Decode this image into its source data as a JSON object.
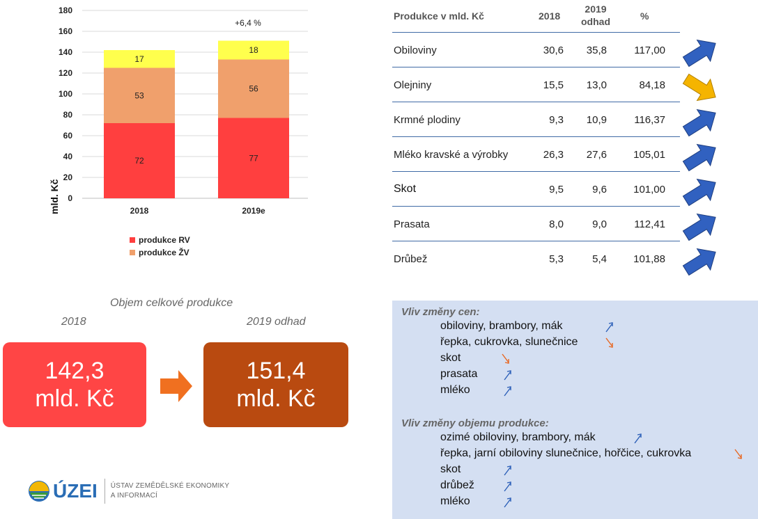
{
  "chart_data": {
    "type": "bar",
    "stacked": true,
    "categories": [
      "2018",
      "2019e"
    ],
    "series": [
      {
        "name": "produkce RV",
        "values": [
          72,
          77
        ],
        "color": "#ff3f3f"
      },
      {
        "name": "produkce ŽV",
        "values": [
          53,
          56
        ],
        "color": "#f0a06c"
      },
      {
        "name": "",
        "values": [
          17,
          18
        ],
        "color": "#ffff4d"
      }
    ],
    "data_labels": [
      [
        "72",
        "53",
        "17"
      ],
      [
        "77",
        "56",
        "18"
      ]
    ],
    "annotation": "+6,4 %",
    "ylabel": "mld. Kč",
    "xlabel": "",
    "ylim": [
      0,
      180
    ],
    "yticks": [
      "0",
      "20",
      "40",
      "60",
      "80",
      "100",
      "120",
      "140",
      "160",
      "180"
    ],
    "grid": true,
    "legend_position": "bottom"
  },
  "table": {
    "header": {
      "name": "Produkce v mld. Kč",
      "y2018": "2018",
      "y2019_line1": "2019",
      "y2019_line2": "odhad",
      "pct": "%"
    },
    "rows": [
      {
        "name": "Obiloviny",
        "y2018": "30,6",
        "y2019": "35,8",
        "pct": "117,00",
        "trend": "up"
      },
      {
        "name": "Olejniny",
        "y2018": "15,5",
        "y2019": "13,0",
        "pct": "84,18",
        "trend": "down"
      },
      {
        "name": "Krmné plodiny",
        "y2018": "9,3",
        "y2019": "10,9",
        "pct": "116,37",
        "trend": "up"
      },
      {
        "name": "Mléko kravské a výrobky",
        "y2018": "26,3",
        "y2019": "27,6",
        "pct": "105,01",
        "trend": "up"
      },
      {
        "name": "Skot",
        "y2018": "9,5",
        "y2019": "9,6",
        "pct": "101,00",
        "trend": "up"
      },
      {
        "name": "Prasata",
        "y2018": "8,0",
        "y2019": "9,0",
        "pct": "112,41",
        "trend": "up"
      },
      {
        "name": "Drůbež",
        "y2018": "5,3",
        "y2019": "5,4",
        "pct": "101,88",
        "trend": "up"
      }
    ],
    "up_color": "#3161c0",
    "down_color": "#f5b400"
  },
  "volume": {
    "title": "Objem celkové produkce",
    "year_left": "2018",
    "year_right": "2019 odhad",
    "left_value": "142,3",
    "left_unit": "mld. Kč",
    "right_value": "151,4",
    "right_unit": "mld. Kč",
    "left_color": "#ff4545",
    "right_color": "#b94a10",
    "arrow_color": "#f07020"
  },
  "panel": {
    "price_heading": "Vliv změny cen:",
    "price_items": [
      {
        "text": "obiloviny, brambory, mák",
        "trend": "up"
      },
      {
        "text": "řepka, cukrovka, slunečnice",
        "trend": "down"
      },
      {
        "text": "skot",
        "trend": "down"
      },
      {
        "text": "prasata",
        "trend": "up"
      },
      {
        "text": "mléko",
        "trend": "up"
      }
    ],
    "volume_heading": "Vliv změny objemu produkce:",
    "volume_items": [
      {
        "text": "ozimé obiloviny, brambory, mák",
        "trend": "up"
      },
      {
        "text": "řepka, jarní obiloviny slunečnice, hořčice, cukrovka",
        "trend": "down"
      },
      {
        "text": "skot",
        "trend": "up"
      },
      {
        "text": "drůbež",
        "trend": "up"
      },
      {
        "text": "mléko",
        "trend": "up"
      }
    ]
  },
  "logo": {
    "name": "ÚZEI",
    "line1": "ÚSTAV ZEMĚDĚLSKÉ EKONOMIKY",
    "line2": "A INFORMACÍ"
  }
}
